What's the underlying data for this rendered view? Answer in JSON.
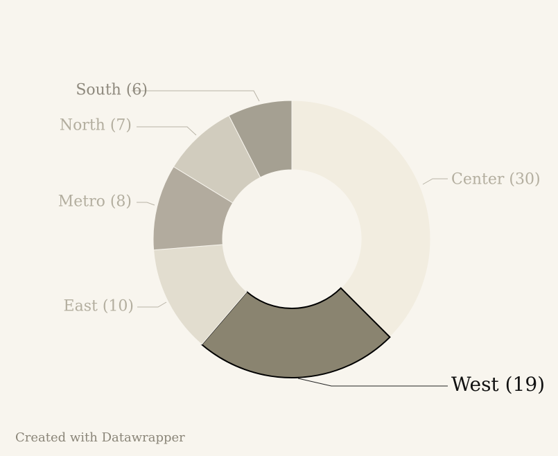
{
  "chart_data": {
    "type": "pie",
    "donut": true,
    "categories": [
      "Center",
      "West",
      "East",
      "Metro",
      "North",
      "South"
    ],
    "values": [
      30,
      19,
      10,
      8,
      7,
      6
    ],
    "labels": [
      "Center (30)",
      "West (19)",
      "East (10)",
      "Metro (8)",
      "North (7)",
      "South (6)"
    ],
    "colors": [
      "#f2ede0",
      "#8a8470",
      "#e2ddcf",
      "#b2ab9e",
      "#d1ccbe",
      "#a5a092"
    ],
    "highlighted": "West",
    "legend": "none"
  },
  "footer": {
    "credit": "Created with Datawrapper"
  }
}
